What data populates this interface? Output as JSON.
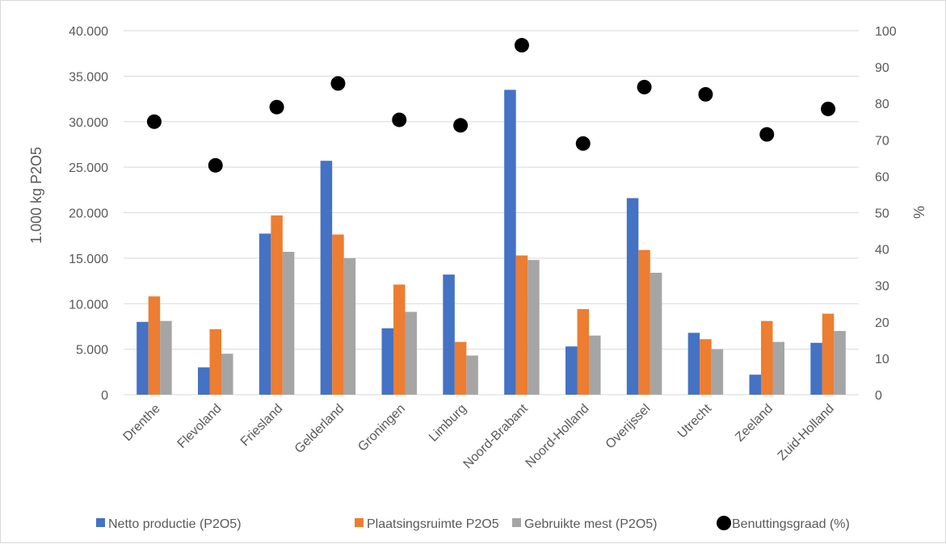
{
  "chart_data": {
    "type": "bar",
    "categories": [
      "Drenthe",
      "Flevoland",
      "Friesland",
      "Gelderland",
      "Groningen",
      "Limburg",
      "Noord-Brabant",
      "Noord-Holland",
      "Overijssel",
      "Utrecht",
      "Zeeland",
      "Zuid-Holland"
    ],
    "series": [
      {
        "name": "Netto productie (P2O5)",
        "type": "bar",
        "axis": "left",
        "color": "#4472C4",
        "values": [
          8000,
          3000,
          17700,
          25700,
          7300,
          13200,
          33500,
          5300,
          21600,
          6800,
          2200,
          5700
        ]
      },
      {
        "name": "Plaatsingsruimte P2O5",
        "type": "bar",
        "axis": "left",
        "color": "#ED7D31",
        "values": [
          10800,
          7200,
          19700,
          17600,
          12100,
          5800,
          15300,
          9400,
          15900,
          6100,
          8100,
          8900
        ]
      },
      {
        "name": "Gebruikte mest (P2O5)",
        "type": "bar",
        "axis": "left",
        "color": "#A5A5A5",
        "values": [
          8100,
          4500,
          15700,
          15000,
          9100,
          4300,
          14800,
          6500,
          13400,
          5000,
          5800,
          7000
        ]
      },
      {
        "name": "Benuttingsgraad (%)",
        "type": "scatter",
        "axis": "right",
        "color": "#000000",
        "values": [
          75,
          63,
          79,
          85.5,
          75.5,
          74,
          96,
          69,
          84.5,
          82.5,
          71.5,
          78.5
        ]
      }
    ],
    "ylabel": "1.000 kg P2O5",
    "y2label": "%",
    "ylim": [
      0,
      40000
    ],
    "y2lim": [
      0,
      100
    ],
    "yticks": [
      "0",
      "5.000",
      "10.000",
      "15.000",
      "20.000",
      "25.000",
      "30.000",
      "35.000",
      "40.000"
    ],
    "y2ticks": [
      "0",
      "10",
      "20",
      "30",
      "40",
      "50",
      "60",
      "70",
      "80",
      "90",
      "100"
    ],
    "grid": true,
    "legend_position": "bottom"
  }
}
